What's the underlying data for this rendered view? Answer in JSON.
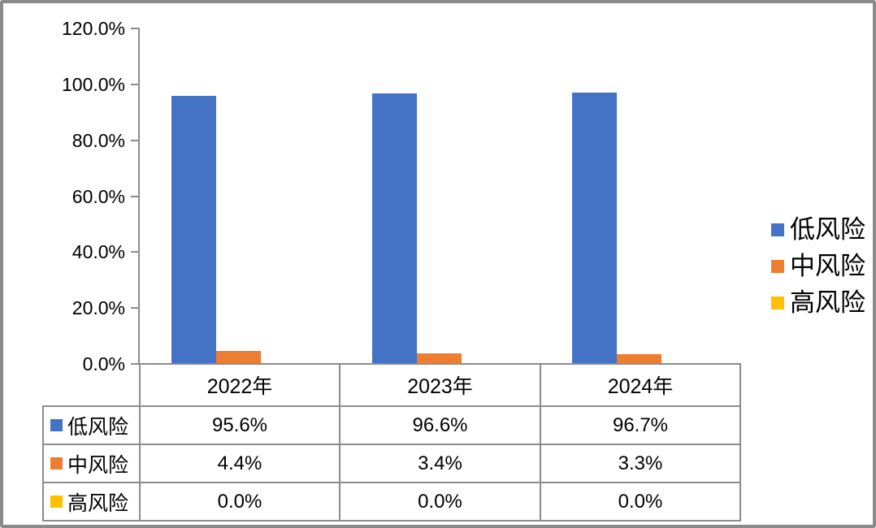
{
  "chart_data": {
    "type": "bar",
    "title": "",
    "categories": [
      "2022年",
      "2023年",
      "2024年"
    ],
    "series": [
      {
        "name": "低风险",
        "color": "#4472C4",
        "values": [
          95.6,
          96.6,
          96.7
        ],
        "labels": [
          "95.6%",
          "96.6%",
          "96.7%"
        ]
      },
      {
        "name": "中风险",
        "color": "#ED7D31",
        "values": [
          4.4,
          3.4,
          3.3
        ],
        "labels": [
          "4.4%",
          "3.4%",
          "3.3%"
        ]
      },
      {
        "name": "高风险",
        "color": "#FFC000",
        "values": [
          0.0,
          0.0,
          0.0
        ],
        "labels": [
          "0.0%",
          "0.0%",
          "0.0%"
        ]
      }
    ],
    "ylim": [
      0,
      120
    ],
    "ytick_step": 20,
    "ytick_labels": [
      "0.0%",
      "20.0%",
      "40.0%",
      "60.0%",
      "80.0%",
      "100.0%",
      "120.0%"
    ],
    "legend_position": "right",
    "grid": false,
    "data_table_shown": true
  },
  "colors": {
    "axis_line": "#8c8c8c",
    "table_border": "#8c8c8c",
    "frame_border": "#8a8a8a",
    "text": "#000000",
    "background": "#ffffff"
  }
}
